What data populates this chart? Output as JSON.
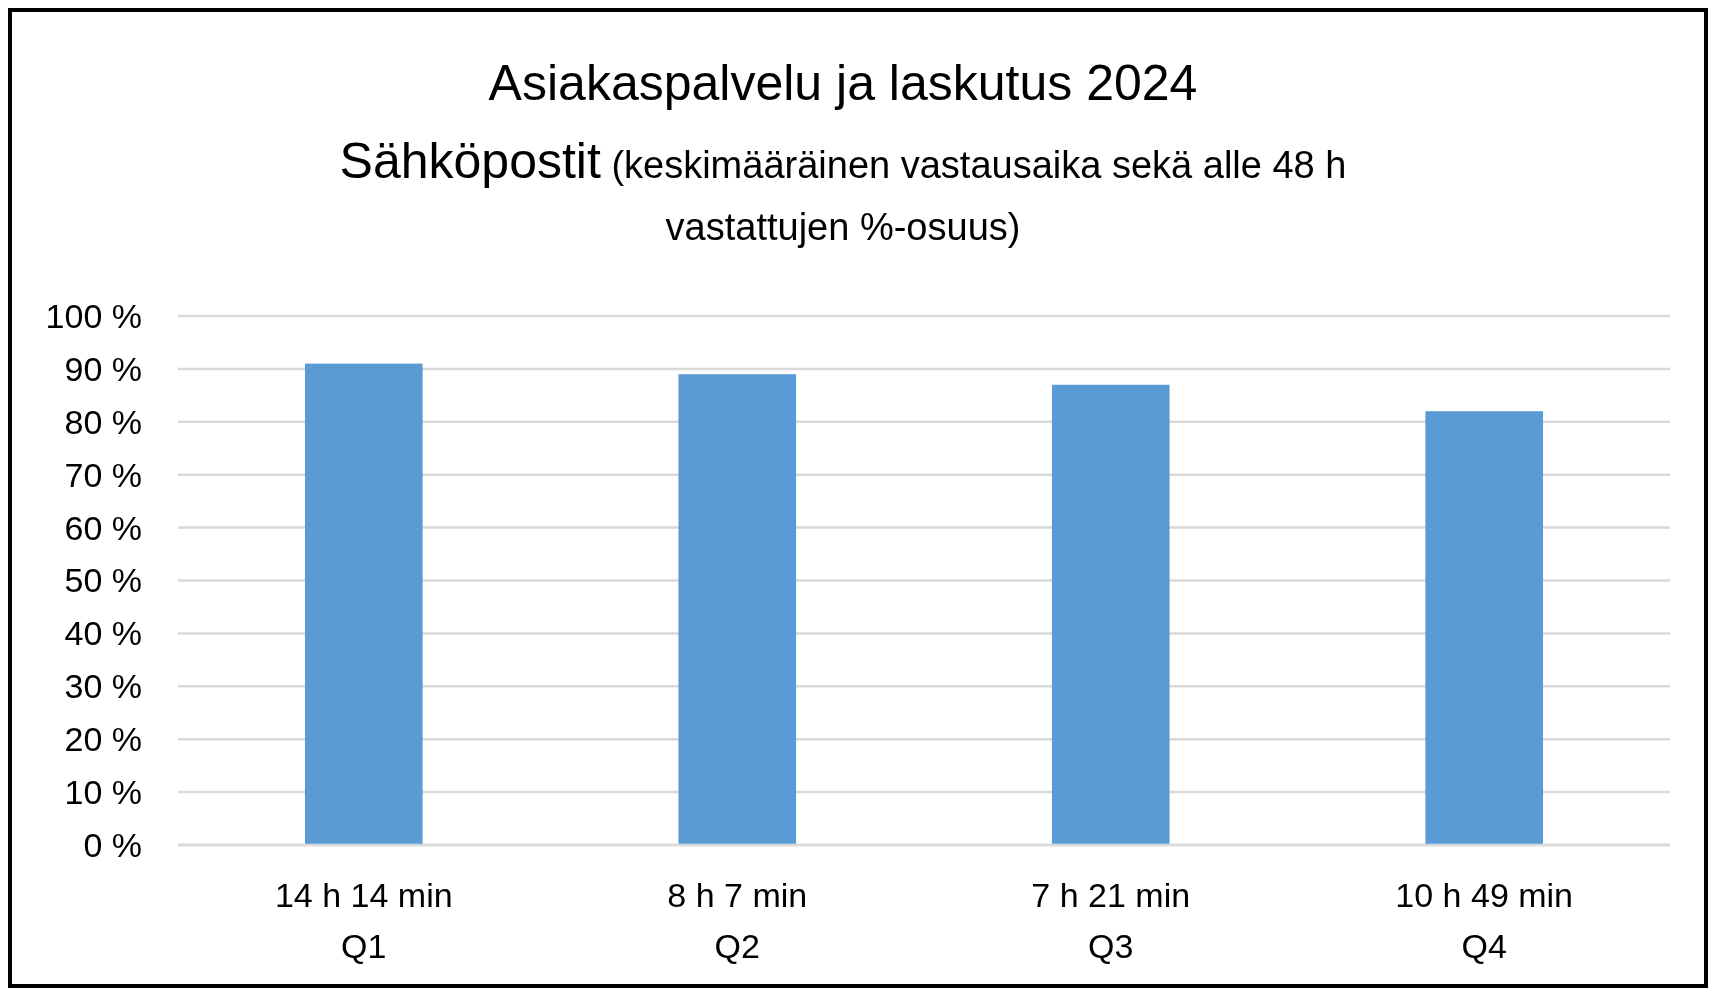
{
  "chart_data": {
    "type": "bar",
    "title": "Asiakaspalvelu ja laskutus 2024",
    "subtitle": "Sähköpostit (keskimääräinen vastausaika sekä alle 48 h vastattujen %-osuus)",
    "categories": [
      "14 h 14 min\nQ1",
      "8 h 7 min\nQ2",
      "7 h 21 min\nQ3",
      "10 h 49 min\nQ4"
    ],
    "values": [
      91,
      89,
      87,
      82
    ],
    "color": "#5b9bd5",
    "ylim": [
      0,
      100
    ],
    "yticks": [
      {
        "value": 0,
        "label": "0 %"
      },
      {
        "value": 10,
        "label": "10 %"
      },
      {
        "value": 20,
        "label": "20 %"
      },
      {
        "value": 30,
        "label": "30 %"
      },
      {
        "value": 40,
        "label": "40 %"
      },
      {
        "value": 50,
        "label": "50 %"
      },
      {
        "value": 60,
        "label": "60 %"
      },
      {
        "value": 70,
        "label": "70 %"
      },
      {
        "value": 80,
        "label": "80 %"
      },
      {
        "value": 90,
        "label": "90 %"
      },
      {
        "value": 100,
        "label": "100 %"
      }
    ],
    "grid": "y"
  }
}
